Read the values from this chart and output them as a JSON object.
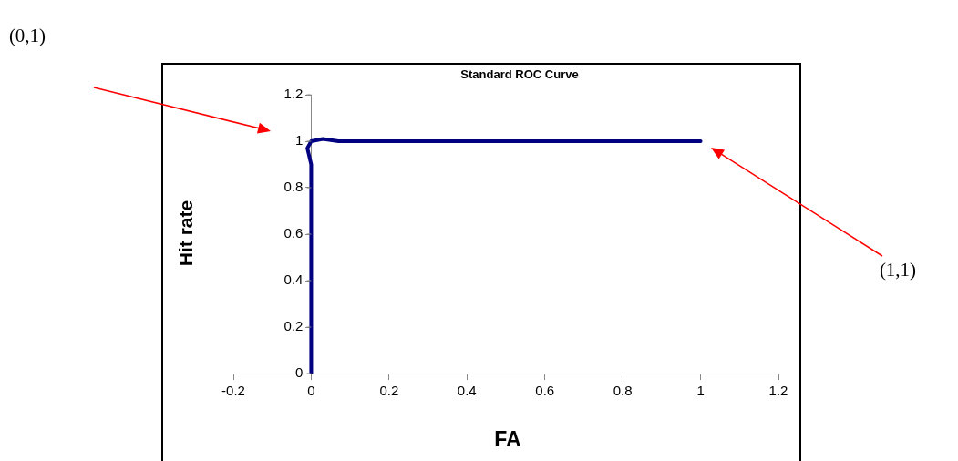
{
  "chart_data": {
    "type": "line",
    "title": "Standard ROC Curve",
    "xlabel": "FA",
    "ylabel": "Hit rate",
    "x": [
      0,
      0,
      -0.01,
      0,
      0.03,
      0.07,
      1
    ],
    "series": [
      {
        "color": "#000080",
        "values": [
          0,
          0.9,
          0.97,
          1,
          1.01,
          1,
          1
        ]
      }
    ],
    "xlim": [
      -0.2,
      1.2
    ],
    "xticks": [
      -0.2,
      0,
      0.2,
      0.4,
      0.6,
      0.8,
      1,
      1.2
    ],
    "ylim": [
      0,
      1.2
    ],
    "yticks": [
      0,
      0.2,
      0.4,
      0.6,
      0.8,
      1,
      1.2
    ],
    "grid": false,
    "legend": false,
    "marker": "none",
    "line_style": "solid",
    "annotations": [
      "(0,1)",
      "(1,1)"
    ]
  }
}
